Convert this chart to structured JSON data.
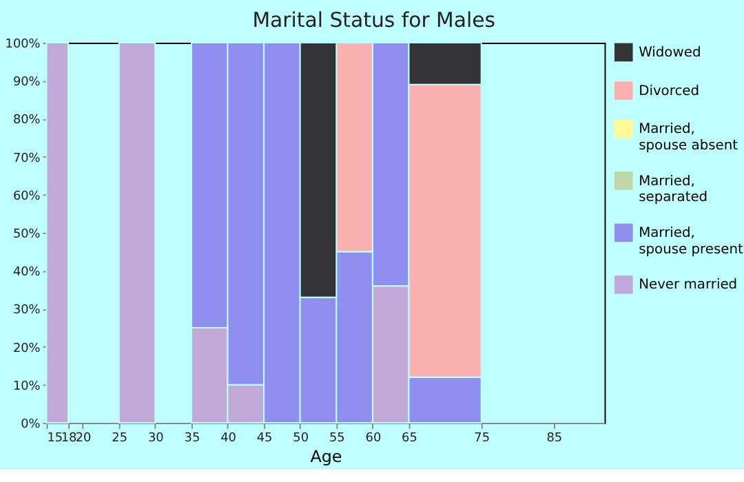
{
  "chart_data": {
    "type": "bar",
    "stacked": true,
    "title": "Marital Status for Males",
    "xlabel": "Age",
    "x": [
      16.5,
      19,
      22.5,
      27.5,
      32.5,
      37.5,
      42.5,
      47.5,
      52.5,
      57.5,
      62.5,
      70
    ],
    "xlim": [
      15,
      92
    ],
    "xticks": [
      15,
      18,
      20,
      25,
      30,
      35,
      40,
      45,
      50,
      55,
      60,
      65,
      75,
      85
    ],
    "ylim": [
      0,
      100
    ],
    "yticks": [
      {
        "value": 0,
        "label": "0%"
      },
      {
        "value": 10,
        "label": "10%"
      },
      {
        "value": 20,
        "label": "20%"
      },
      {
        "value": 30,
        "label": "30%"
      },
      {
        "value": 40,
        "label": "40%"
      },
      {
        "value": 50,
        "label": "50%"
      },
      {
        "value": 60,
        "label": "60%"
      },
      {
        "value": 70,
        "label": "70%"
      },
      {
        "value": 80,
        "label": "80%"
      },
      {
        "value": 90,
        "label": "90%"
      },
      {
        "value": 100,
        "label": "100%"
      }
    ],
    "grid": false,
    "legend": "right",
    "series": [
      {
        "name": "Never married",
        "color": "#c0a8d8",
        "values": [
          100,
          null,
          null,
          100,
          null,
          25,
          10,
          null,
          null,
          null,
          36,
          null
        ]
      },
      {
        "name": "Married, spouse present",
        "color": "#8f8ff0",
        "values": [
          null,
          null,
          null,
          null,
          null,
          75,
          90,
          100,
          33,
          45,
          64,
          12
        ]
      },
      {
        "name": "Married, separated",
        "color": "#c0d8a8",
        "values": [
          null,
          null,
          null,
          null,
          null,
          null,
          null,
          null,
          null,
          null,
          null,
          null
        ]
      },
      {
        "name": "Married, spouse absent",
        "color": "#fff898",
        "values": [
          null,
          null,
          null,
          null,
          null,
          null,
          null,
          null,
          null,
          null,
          null,
          null
        ]
      },
      {
        "name": "Divorced",
        "color": "#f8b0b0",
        "values": [
          null,
          null,
          null,
          null,
          null,
          null,
          null,
          null,
          null,
          55,
          null,
          77
        ]
      },
      {
        "name": "Widowed",
        "color": "#333338",
        "values": [
          null,
          null,
          null,
          null,
          null,
          null,
          null,
          null,
          67,
          null,
          null,
          11
        ]
      }
    ]
  }
}
